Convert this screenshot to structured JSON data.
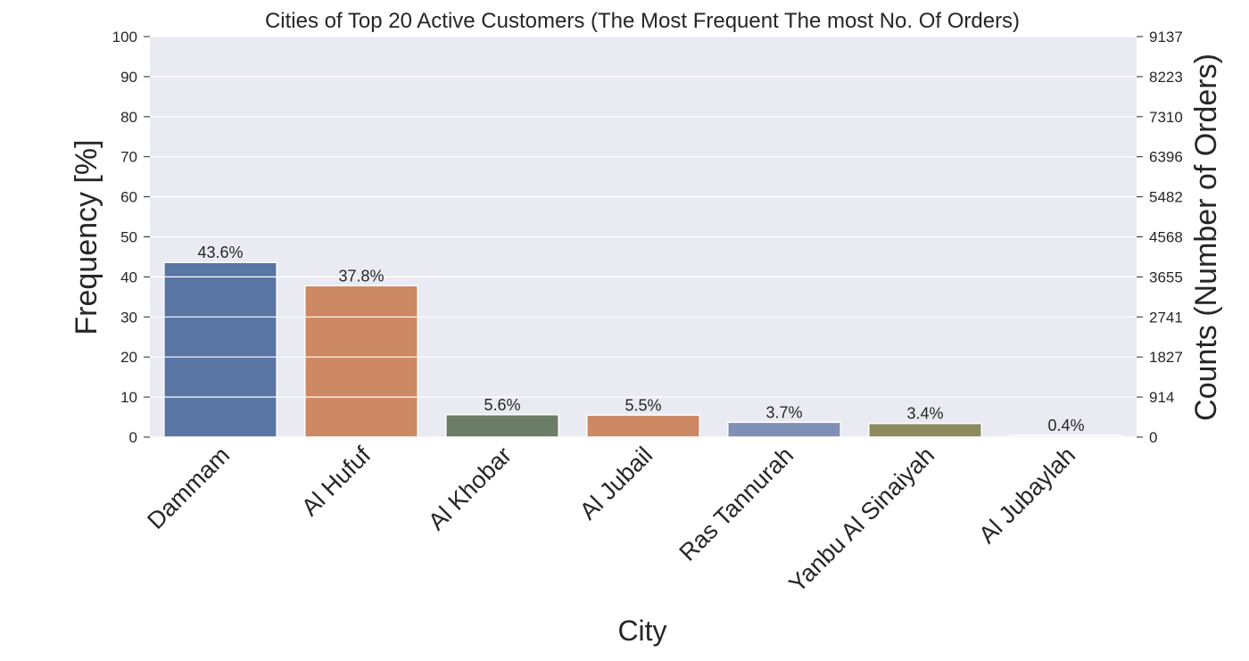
{
  "chart_data": {
    "type": "bar",
    "title": "Cities of Top 20 Active Customers (The Most Frequent The most No. Of Orders)",
    "xlabel": "City",
    "ylabel": "Frequency [%]",
    "ylabel_right": "Counts (Number of Orders)",
    "categories": [
      "Dammam",
      "Al Hufuf",
      "Al Khobar",
      "Al Jubail",
      "Ras Tannurah",
      "Yanbu Al Sinaiyah",
      "Al Jubaylah"
    ],
    "values": [
      43.6,
      37.8,
      5.6,
      5.5,
      3.7,
      3.4,
      0.4
    ],
    "data_labels": [
      "43.6%",
      "37.8%",
      "5.6%",
      "5.5%",
      "3.7%",
      "3.4%",
      "0.4%"
    ],
    "bar_colors": [
      "#5975a4",
      "#cc8963",
      "#6b7d66",
      "#cc8963",
      "#7f8fb6",
      "#8c8a5e",
      "#cccccc"
    ],
    "ylim": [
      0,
      100
    ],
    "yticks": [
      0,
      10,
      20,
      30,
      40,
      50,
      60,
      70,
      80,
      90,
      100
    ],
    "yticks_right": [
      "0",
      "914",
      "1827",
      "2741",
      "3655",
      "4568",
      "5482",
      "6396",
      "7310",
      "8223",
      "9137"
    ],
    "grid": true,
    "background_color": "#eaeaf2"
  }
}
